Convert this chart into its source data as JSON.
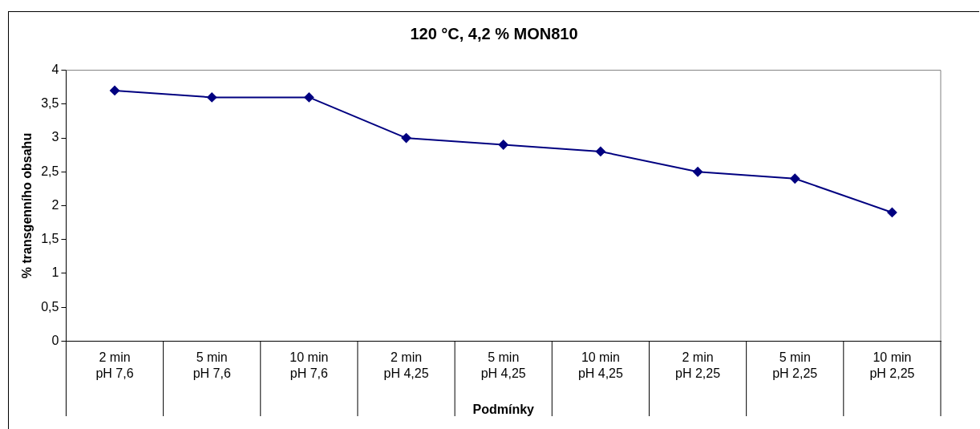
{
  "chart_data": {
    "type": "line",
    "title": "120 °C, 4,2 % MON810",
    "xlabel": "Podmínky",
    "ylabel": "% transgenního obsahu",
    "categories": [
      "2 min\npH 7,6",
      "5 min\npH 7,6",
      "10 min\npH 7,6",
      "2 min\npH 4,25",
      "5 min\npH 4,25",
      "10 min\npH 4,25",
      "2 min\npH 2,25",
      "5 min\npH 2,25",
      "10 min\npH 2,25"
    ],
    "series": [
      {
        "color": "#000080",
        "values": [
          3.7,
          3.6,
          3.6,
          3.0,
          2.9,
          2.8,
          2.5,
          2.4,
          1.9
        ]
      }
    ],
    "ylim": [
      0,
      4
    ],
    "yticks": [
      {
        "value": 0,
        "label": "0"
      },
      {
        "value": 0.5,
        "label": "0,5"
      },
      {
        "value": 1,
        "label": "1"
      },
      {
        "value": 1.5,
        "label": "1,5"
      },
      {
        "value": 2,
        "label": "2"
      },
      {
        "value": 2.5,
        "label": "2,5"
      },
      {
        "value": 3,
        "label": "3"
      },
      {
        "value": 3.5,
        "label": "3,5"
      },
      {
        "value": 4,
        "label": "4"
      }
    ],
    "grid": false,
    "legend": false,
    "marker": "diamond",
    "line_style": "solid"
  }
}
